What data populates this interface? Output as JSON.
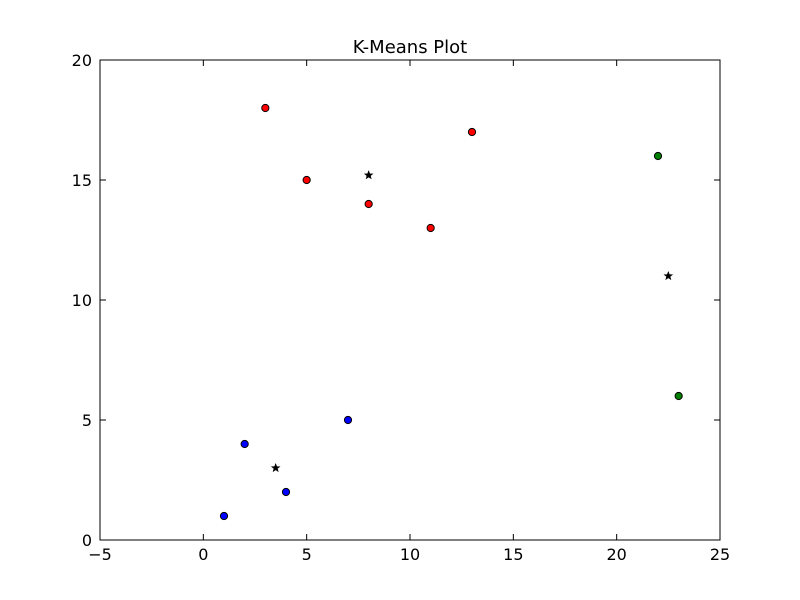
{
  "chart_data": {
    "type": "scatter",
    "title": "K-Means Plot",
    "xlabel": "",
    "ylabel": "",
    "xlim": [
      -5,
      25
    ],
    "ylim": [
      0,
      20
    ],
    "x_ticks": [
      -5,
      0,
      5,
      10,
      15,
      20,
      25
    ],
    "y_ticks": [
      0,
      5,
      10,
      15,
      20
    ],
    "x_tick_labels": [
      "−5",
      "0",
      "5",
      "10",
      "15",
      "20",
      "25"
    ],
    "y_tick_labels": [
      "0",
      "5",
      "10",
      "15",
      "20"
    ],
    "grid": false,
    "legend": "none",
    "series": [
      {
        "marker": "circle",
        "color": "#ff0000",
        "points": [
          [
            3,
            18
          ],
          [
            5,
            15
          ],
          [
            8,
            14
          ],
          [
            11,
            13
          ],
          [
            13,
            17
          ]
        ]
      },
      {
        "marker": "circle",
        "color": "#0000ff",
        "points": [
          [
            1,
            1
          ],
          [
            2,
            4
          ],
          [
            4,
            2
          ],
          [
            7,
            5
          ]
        ]
      },
      {
        "marker": "circle",
        "color": "#007f00",
        "points": [
          [
            22,
            16
          ],
          [
            23,
            6
          ]
        ]
      },
      {
        "marker": "star",
        "color": "#000000",
        "points": [
          [
            8,
            15.2
          ],
          [
            22.5,
            11
          ],
          [
            3.5,
            3
          ]
        ]
      }
    ]
  }
}
